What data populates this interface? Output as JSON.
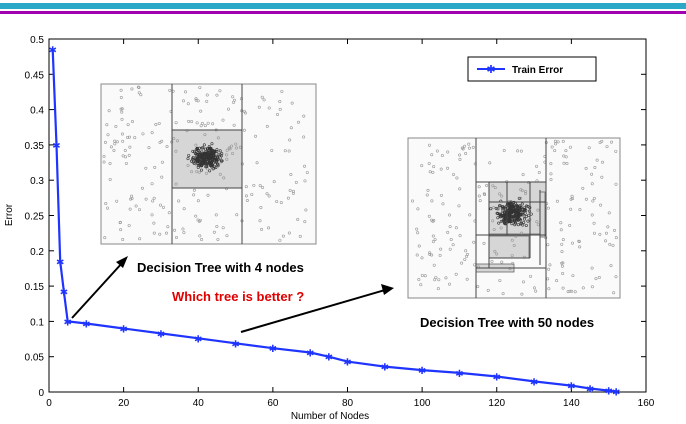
{
  "colors": {
    "series": "#1f35ff",
    "axis": "#000000",
    "callout": "#e00000",
    "band_top": "#2aa8c8",
    "band_bottom": "#a000b0",
    "inset_region": "#d6d6d6"
  },
  "chart_data": {
    "type": "line",
    "xlabel": "Number of Nodes",
    "ylabel": "Error",
    "xlim": [
      0,
      160
    ],
    "ylim": [
      0,
      0.5
    ],
    "x_ticks": [
      "0",
      "20",
      "40",
      "60",
      "80",
      "100",
      "120",
      "140",
      "160"
    ],
    "y_ticks": [
      "0",
      "0.05",
      "0.1",
      "0.15",
      "0.2",
      "0.25",
      "0.3",
      "0.35",
      "0.4",
      "0.45",
      "0.5"
    ],
    "grid": false,
    "legend_position": "top-right",
    "series": [
      {
        "name": "Train Error",
        "marker": "star",
        "x": [
          1,
          2,
          3,
          4,
          5,
          10,
          20,
          30,
          40,
          50,
          60,
          70,
          75,
          80,
          90,
          100,
          110,
          120,
          130,
          140,
          145,
          150,
          152
        ],
        "y": [
          0.485,
          0.35,
          0.185,
          0.142,
          0.1,
          0.097,
          0.09,
          0.083,
          0.076,
          0.069,
          0.062,
          0.056,
          0.05,
          0.043,
          0.036,
          0.031,
          0.027,
          0.022,
          0.015,
          0.009,
          0.005,
          0.002,
          0.001
        ]
      }
    ]
  },
  "annotations": {
    "tree4_caption": "Decision Tree with 4 nodes",
    "tree50_caption": "Decision Tree with 50 nodes",
    "question": "Which tree is better ?"
  }
}
